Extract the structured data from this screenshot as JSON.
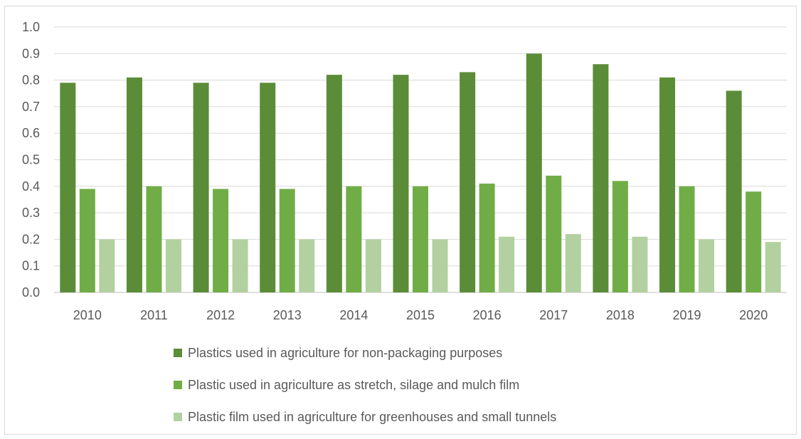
{
  "chart_data": {
    "type": "bar",
    "title": "",
    "xlabel": "",
    "ylabel": "",
    "ylim": [
      0,
      1.0
    ],
    "yticks": [
      "0.0",
      "0.1",
      "0.2",
      "0.3",
      "0.4",
      "0.5",
      "0.6",
      "0.7",
      "0.8",
      "0.9",
      "1.0"
    ],
    "grid": true,
    "legend_position": "bottom",
    "categories": [
      "2010",
      "2011",
      "2012",
      "2013",
      "2014",
      "2015",
      "2016",
      "2017",
      "2018",
      "2019",
      "2020"
    ],
    "series": [
      {
        "name": "Plastics used in agriculture for non-packaging purposes",
        "color": "#5b8c37",
        "values": [
          0.79,
          0.81,
          0.79,
          0.79,
          0.82,
          0.82,
          0.83,
          0.9,
          0.86,
          0.81,
          0.76
        ]
      },
      {
        "name": "Plastic used in agriculture as stretch, silage and mulch film",
        "color": "#70ad47",
        "values": [
          0.39,
          0.4,
          0.39,
          0.39,
          0.4,
          0.4,
          0.41,
          0.44,
          0.42,
          0.4,
          0.38
        ]
      },
      {
        "name": "Plastic film used in agriculture for greenhouses and small tunnels",
        "color": "#b3d1a0",
        "values": [
          0.2,
          0.2,
          0.2,
          0.2,
          0.2,
          0.2,
          0.21,
          0.22,
          0.21,
          0.2,
          0.19
        ]
      }
    ]
  }
}
